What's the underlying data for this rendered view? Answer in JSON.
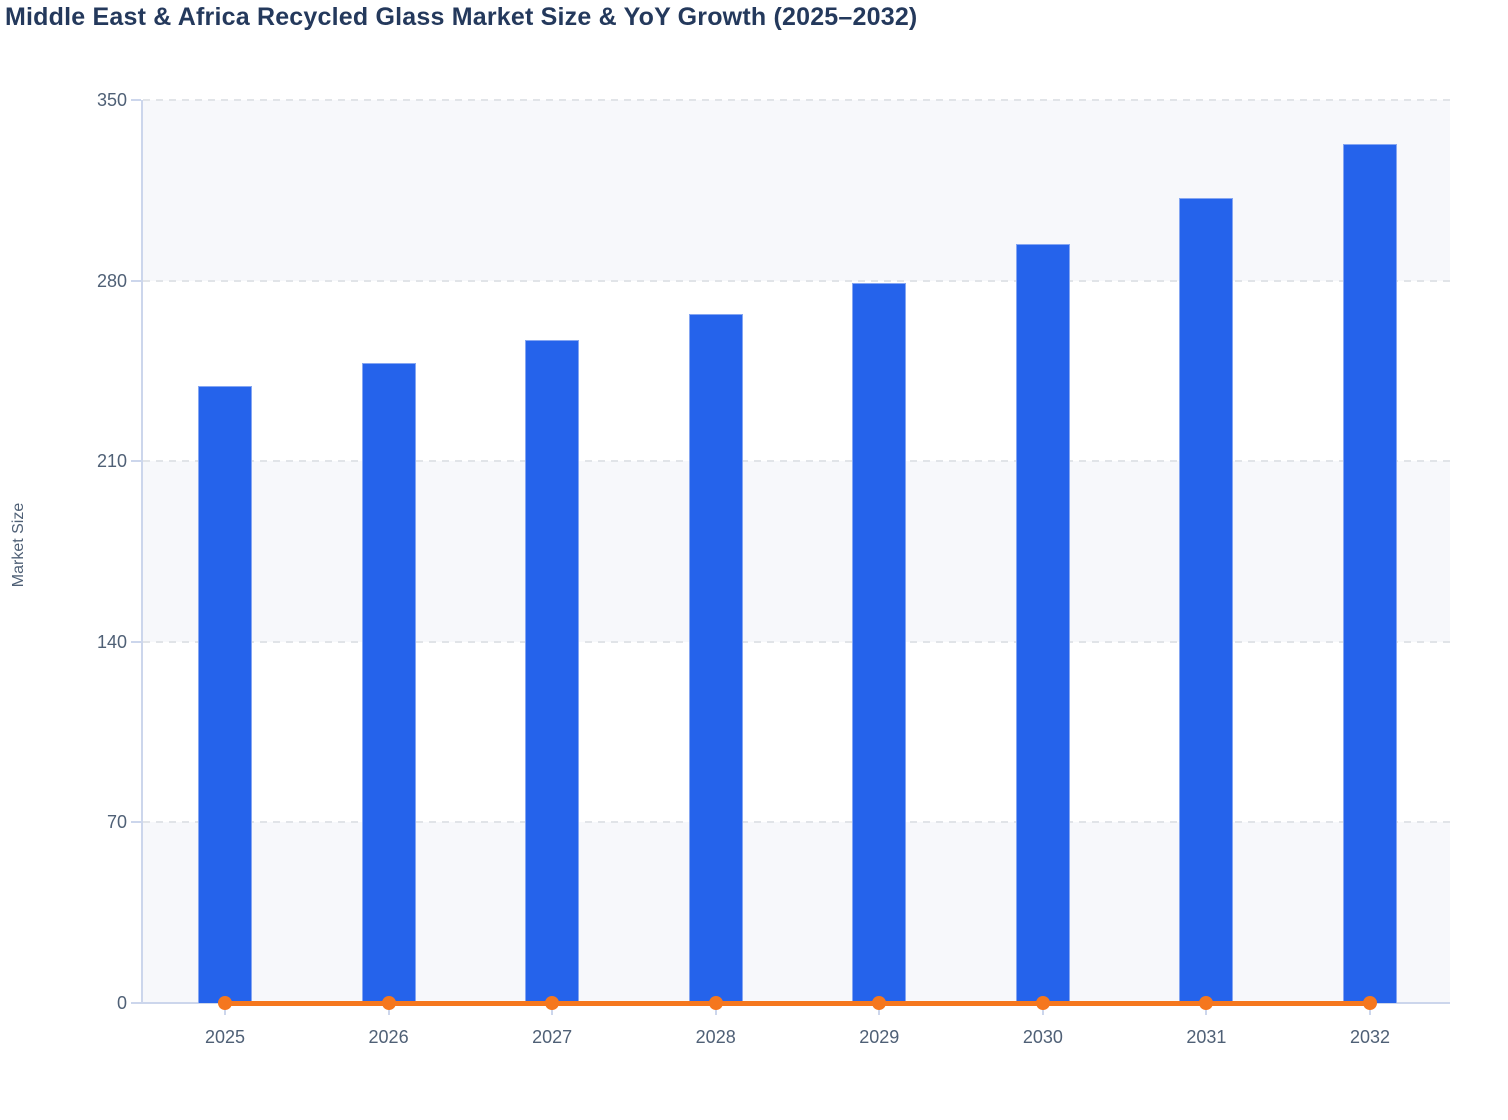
{
  "chart_data": {
    "type": "bar",
    "subtype": "bar with line overlay",
    "title": "Middle East & Africa Recycled Glass Market Size & YoY Growth (2025–2032)",
    "xlabel": "",
    "ylabel": "Market Size",
    "categories": [
      "2025",
      "2026",
      "2027",
      "2028",
      "2029",
      "2030",
      "2031",
      "2032"
    ],
    "series": [
      {
        "name": "Market Size",
        "type": "bar",
        "color": "#2563eb",
        "values": [
          239,
          248,
          257,
          267,
          279,
          294,
          312,
          333
        ]
      },
      {
        "name": "YoY Growth",
        "type": "line",
        "color": "#f5771e",
        "values": [
          0,
          0,
          0,
          0,
          0,
          0,
          0,
          0
        ],
        "note": "line renders flat at ~0 on the shared Market Size axis; growth values are not labeled in the image"
      }
    ],
    "ylim": [
      0,
      350
    ],
    "yticks": [
      0,
      70,
      140,
      210,
      280,
      350
    ],
    "legend": "none",
    "grid": "horizontal dashed gridlines with alternating row shading"
  },
  "colors": {
    "bar": "#2563eb",
    "bar_edge": "#85a6f2",
    "line": "#f5771e",
    "title_text": "#24395c",
    "axis_text": "#4f6076",
    "axis_line": "#ccd6ec",
    "gridline": "#e1e4e8",
    "row_band": "#f7f8fb",
    "background": "#ffffff"
  }
}
